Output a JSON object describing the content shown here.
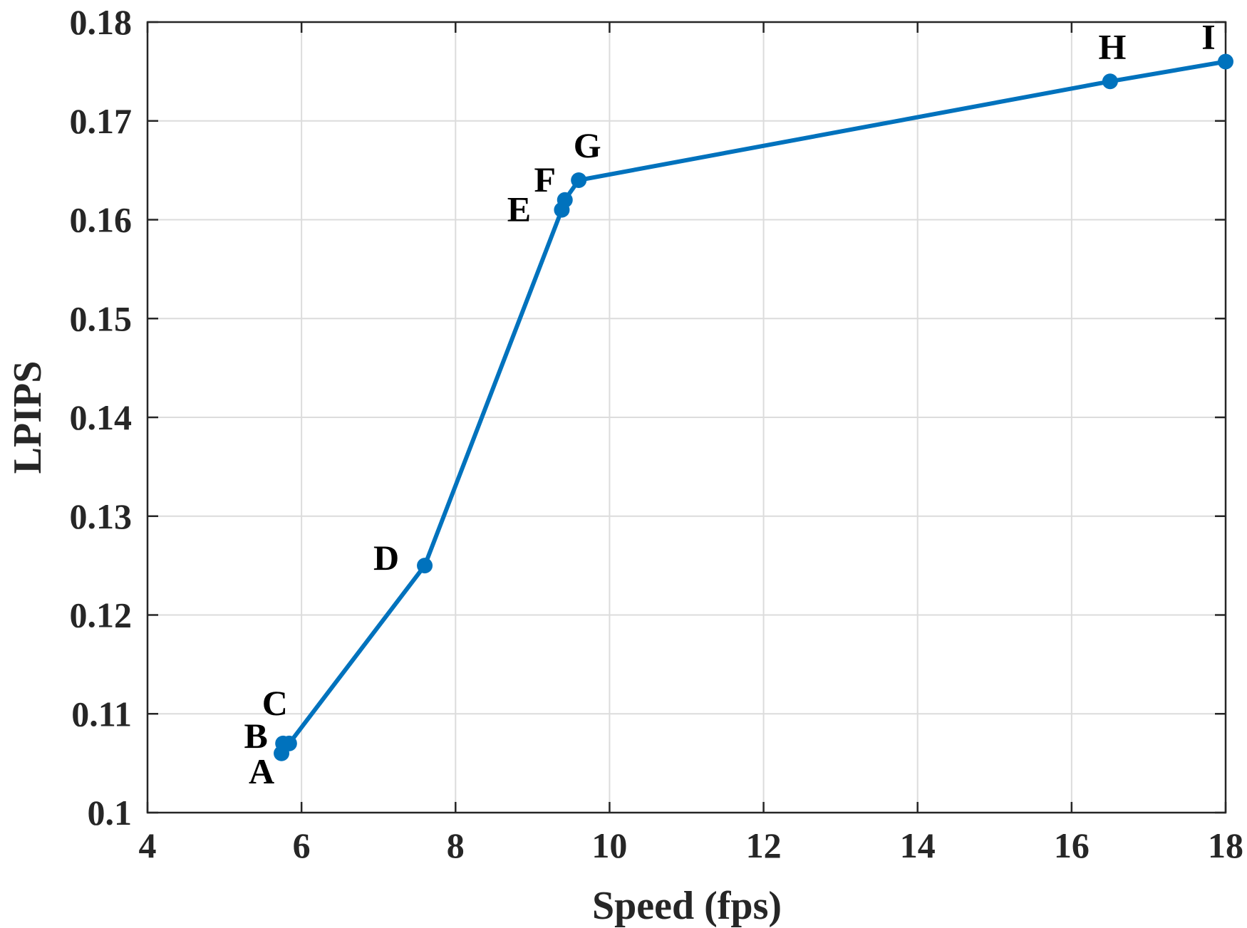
{
  "chart_data": {
    "type": "line",
    "title": "",
    "xlabel": "Speed (fps)",
    "ylabel": "LPIPS",
    "xlim": [
      4,
      18
    ],
    "ylim": [
      0.1,
      0.18
    ],
    "xticks": [
      4,
      6,
      8,
      10,
      12,
      14,
      16,
      18
    ],
    "yticks": [
      0.1,
      0.11,
      0.12,
      0.13,
      0.14,
      0.15,
      0.16,
      0.17,
      0.18
    ],
    "xtick_labels": [
      "4",
      "6",
      "8",
      "10",
      "12",
      "14",
      "16",
      "18"
    ],
    "ytick_labels": [
      "0.1",
      "0.11",
      "0.12",
      "0.13",
      "0.14",
      "0.15",
      "0.16",
      "0.17",
      "0.18"
    ],
    "grid": true,
    "series": [
      {
        "color": "#0072bd",
        "points": [
          {
            "label": "A",
            "x": 5.74,
            "y": 0.106
          },
          {
            "label": "B",
            "x": 5.76,
            "y": 0.107
          },
          {
            "label": "C",
            "x": 5.84,
            "y": 0.107
          },
          {
            "label": "D",
            "x": 7.6,
            "y": 0.125
          },
          {
            "label": "E",
            "x": 9.38,
            "y": 0.161
          },
          {
            "label": "F",
            "x": 9.42,
            "y": 0.162
          },
          {
            "label": "G",
            "x": 9.6,
            "y": 0.164
          },
          {
            "label": "H",
            "x": 16.5,
            "y": 0.174
          },
          {
            "label": "I",
            "x": 18.0,
            "y": 0.176
          }
        ]
      }
    ]
  }
}
